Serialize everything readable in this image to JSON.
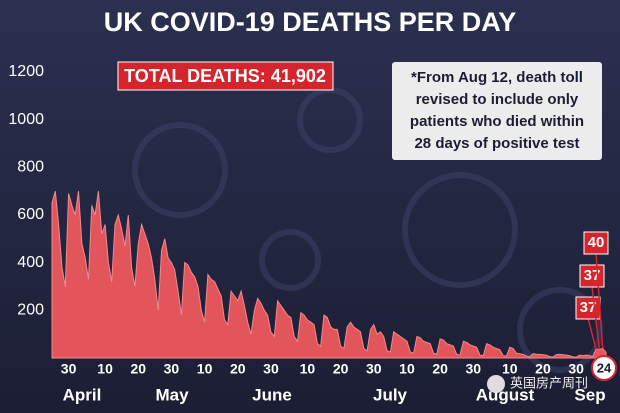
{
  "chart_data": {
    "type": "area",
    "title": "UK COVID-19 DEATHS PER DAY",
    "total_label": "TOTAL DEATHS: 41,902",
    "note": [
      "*From Aug 12, death toll",
      "revised to include only",
      "patients who died within",
      "28 days of positive test"
    ],
    "months": [
      "April",
      "May",
      "June",
      "July",
      "August",
      "Sep"
    ],
    "watermark": "英国房产周刊",
    "color": "#e2555b",
    "ylim": [
      0,
      1250
    ],
    "yticks": [
      200,
      400,
      600,
      800,
      1000,
      1200
    ],
    "categories": [
      null,
      null,
      null,
      null,
      null,
      "30",
      null,
      null,
      null,
      null,
      null,
      null,
      null,
      null,
      null,
      null,
      "10",
      null,
      null,
      null,
      null,
      null,
      null,
      null,
      null,
      null,
      "20",
      null,
      null,
      null,
      null,
      null,
      null,
      null,
      null,
      null,
      "30",
      null,
      null,
      null,
      null,
      null,
      null,
      null,
      null,
      null,
      "10",
      null,
      null,
      null,
      null,
      null,
      null,
      null,
      null,
      null,
      "20",
      null,
      null,
      null,
      null,
      null,
      null,
      null,
      null,
      null,
      "30",
      null,
      null,
      null,
      null,
      null,
      null,
      null,
      null,
      null,
      null,
      "10",
      null,
      null,
      null,
      null,
      null,
      null,
      null,
      null,
      null,
      "20",
      null,
      null,
      null,
      null,
      null,
      null,
      null,
      null,
      null,
      "30",
      null,
      null,
      null,
      null,
      null,
      null,
      null,
      null,
      null,
      "10",
      null,
      null,
      null,
      null,
      null,
      null,
      null,
      null,
      null,
      "20",
      null,
      null,
      null,
      null,
      null,
      null,
      null,
      null,
      null,
      "30",
      null,
      null,
      null,
      null,
      null,
      null,
      null,
      null,
      null,
      null,
      "10",
      null,
      null,
      null,
      null,
      null,
      null,
      null,
      null,
      null,
      "20",
      null,
      null,
      null,
      null,
      null,
      null,
      null,
      null,
      null,
      "30",
      null,
      null,
      null,
      null,
      null,
      null,
      null,
      null,
      null
    ],
    "values": [
      650,
      700,
      560,
      380,
      300,
      690,
      640,
      600,
      700,
      480,
      420,
      330,
      640,
      600,
      700,
      520,
      560,
      400,
      320,
      560,
      600,
      540,
      470,
      600,
      380,
      300,
      480,
      560,
      520,
      480,
      420,
      330,
      200,
      450,
      500,
      420,
      400,
      370,
      280,
      180,
      400,
      390,
      360,
      340,
      300,
      200,
      150,
      350,
      330,
      320,
      290,
      260,
      160,
      140,
      280,
      260,
      240,
      280,
      220,
      150,
      100,
      200,
      250,
      230,
      200,
      180,
      110,
      90,
      240,
      220,
      200,
      180,
      170,
      90,
      70,
      190,
      180,
      160,
      150,
      140,
      60,
      50,
      180,
      170,
      130,
      120,
      120,
      50,
      40,
      130,
      150,
      130,
      120,
      110,
      40,
      30,
      120,
      140,
      100,
      110,
      90,
      30,
      25,
      110,
      100,
      90,
      80,
      70,
      25,
      20,
      90,
      85,
      70,
      65,
      60,
      20,
      15,
      80,
      75,
      60,
      55,
      50,
      15,
      12,
      70,
      65,
      55,
      50,
      45,
      12,
      10,
      60,
      55,
      45,
      40,
      35,
      10,
      8,
      45,
      40,
      20,
      18,
      15,
      8,
      5,
      18,
      16,
      15,
      14,
      12,
      6,
      4,
      14,
      16,
      14,
      12,
      10,
      5,
      3,
      12,
      10,
      12,
      10,
      6,
      37,
      37,
      40,
      24
    ]
  }
}
